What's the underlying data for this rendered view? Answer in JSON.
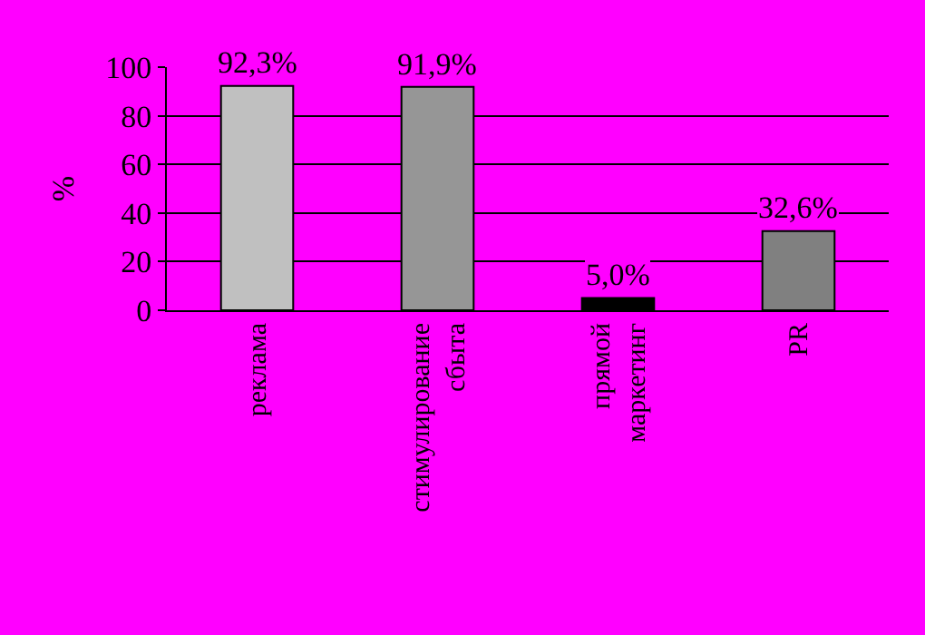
{
  "chart_data": {
    "type": "bar",
    "ylabel": "%",
    "categories": [
      "реклама",
      "стимулирование сбыта",
      "прямой маркетинг",
      "PR"
    ],
    "values": [
      92.3,
      91.9,
      5.0,
      32.6
    ],
    "colors": [
      "#c0c0c0",
      "#969696",
      "#000000",
      "#808080"
    ],
    "value_labels": [
      "92,3%",
      "91,9%",
      "5,0%",
      "32,6%"
    ],
    "ylim": [
      0,
      100
    ],
    "yticks": [
      0,
      20,
      40,
      60,
      80,
      100
    ],
    "grid": "y"
  }
}
